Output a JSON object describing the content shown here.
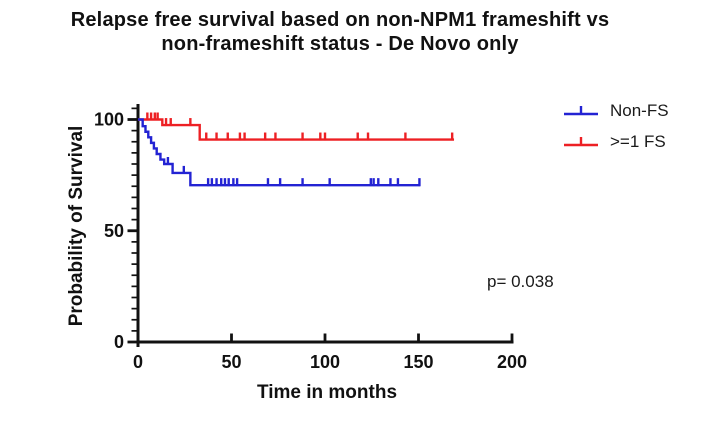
{
  "header": {
    "title_line1": "Relapse free survival based on non-NPM1 frameshift vs",
    "title_line2": "non-frameshift status - De Novo only"
  },
  "chart_data": {
    "type": "line",
    "subtype": "kaplan-meier-step",
    "title": "Relapse free survival based on non-NPM1 frameshift vs non-frameshift status - De Novo only",
    "xlabel": "Time in months",
    "ylabel": "Probability of Survival",
    "xlim": [
      0,
      200
    ],
    "ylim": [
      0,
      100
    ],
    "x_ticks": [
      0,
      50,
      100,
      150,
      200
    ],
    "y_ticks": [
      0,
      50,
      100
    ],
    "y_minor_tick_step": 5,
    "grid": false,
    "legend_position": "top-right",
    "annotation": "p= 0.038",
    "series": [
      {
        "name": ">=1 FS",
        "color": "#ed2024",
        "steps": [
          [
            0,
            100
          ],
          [
            13,
            100
          ],
          [
            13,
            97.5
          ],
          [
            33,
            97.5
          ],
          [
            33,
            91
          ],
          [
            169,
            91
          ]
        ],
        "censor_marks": [
          [
            5,
            100
          ],
          [
            7,
            100
          ],
          [
            9,
            100
          ],
          [
            10.5,
            100
          ],
          [
            15,
            97.5
          ],
          [
            17.5,
            97.5
          ],
          [
            28,
            97.5
          ],
          [
            36.5,
            91
          ],
          [
            42,
            91
          ],
          [
            48,
            91
          ],
          [
            54.5,
            91
          ],
          [
            57,
            91
          ],
          [
            68,
            91
          ],
          [
            73.5,
            91
          ],
          [
            88,
            91
          ],
          [
            97.5,
            91
          ],
          [
            100,
            91
          ],
          [
            117.5,
            91
          ],
          [
            123,
            91
          ],
          [
            143,
            91
          ],
          [
            168,
            91
          ]
        ]
      },
      {
        "name": "Non-FS",
        "color": "#2323d3",
        "steps": [
          [
            0,
            100
          ],
          [
            2.5,
            100
          ],
          [
            2.5,
            97
          ],
          [
            4,
            97
          ],
          [
            4,
            94.5
          ],
          [
            5.5,
            94.5
          ],
          [
            5.5,
            92
          ],
          [
            7,
            92
          ],
          [
            7,
            89.5
          ],
          [
            8.5,
            89.5
          ],
          [
            8.5,
            87
          ],
          [
            10,
            87
          ],
          [
            10,
            84.5
          ],
          [
            12,
            84.5
          ],
          [
            12,
            82
          ],
          [
            14,
            82
          ],
          [
            14,
            80
          ],
          [
            18.5,
            80
          ],
          [
            18.5,
            76
          ],
          [
            28,
            76
          ],
          [
            28,
            70.5
          ],
          [
            151,
            70.5
          ]
        ],
        "censor_marks": [
          [
            16,
            80
          ],
          [
            24.5,
            76
          ],
          [
            37.5,
            70.5
          ],
          [
            39.5,
            70.5
          ],
          [
            42,
            70.5
          ],
          [
            44.5,
            70.5
          ],
          [
            46.5,
            70.5
          ],
          [
            48.5,
            70.5
          ],
          [
            51,
            70.5
          ],
          [
            53,
            70.5
          ],
          [
            69.5,
            70.5
          ],
          [
            76,
            70.5
          ],
          [
            88,
            70.5
          ],
          [
            102.5,
            70.5
          ],
          [
            124.5,
            70.5
          ],
          [
            126,
            70.5
          ],
          [
            128.5,
            70.5
          ],
          [
            135,
            70.5
          ],
          [
            139,
            70.5
          ],
          [
            150.5,
            70.5
          ]
        ]
      }
    ],
    "legend_order": [
      "Non-FS",
      ">=1 FS"
    ]
  }
}
